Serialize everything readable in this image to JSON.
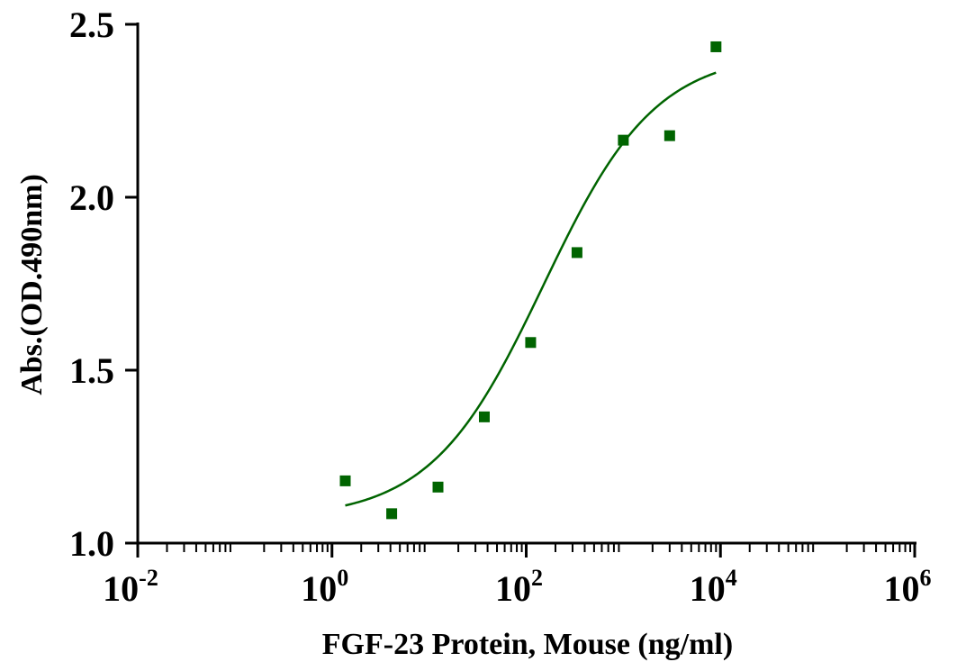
{
  "chart_data": {
    "type": "scatter",
    "title": "",
    "xlabel": "FGF-23 Protein, Mouse  (ng/ml)",
    "ylabel": "Abs.(OD.490nm)",
    "x_scale": "log10",
    "xlim": [
      0.01,
      1000000
    ],
    "ylim": [
      1.0,
      2.5
    ],
    "x_ticks": [
      {
        "base": "10",
        "exp": "-2"
      },
      {
        "base": "10",
        "exp": "0"
      },
      {
        "base": "10",
        "exp": "2"
      },
      {
        "base": "10",
        "exp": "4"
      },
      {
        "base": "10",
        "exp": "6"
      }
    ],
    "y_ticks": [
      "1.0",
      "1.5",
      "2.0",
      "2.5"
    ],
    "grid": false,
    "legend": "none",
    "series": [
      {
        "color": "#006400",
        "marker": "square",
        "fit": "sigmoidal 4PL curve",
        "x": [
          1.37,
          4.12,
          12.35,
          37.04,
          111.1,
          333.3,
          1000,
          3000,
          9000
        ],
        "y": [
          1.18,
          1.085,
          1.162,
          1.365,
          1.58,
          1.84,
          2.165,
          2.178,
          2.435
        ]
      }
    ],
    "fit_curve": {
      "model": "4PL",
      "bottom": 1.07,
      "top": 2.42,
      "ec50": 150,
      "hill": 0.75,
      "x_range": [
        1.37,
        9000
      ]
    }
  }
}
